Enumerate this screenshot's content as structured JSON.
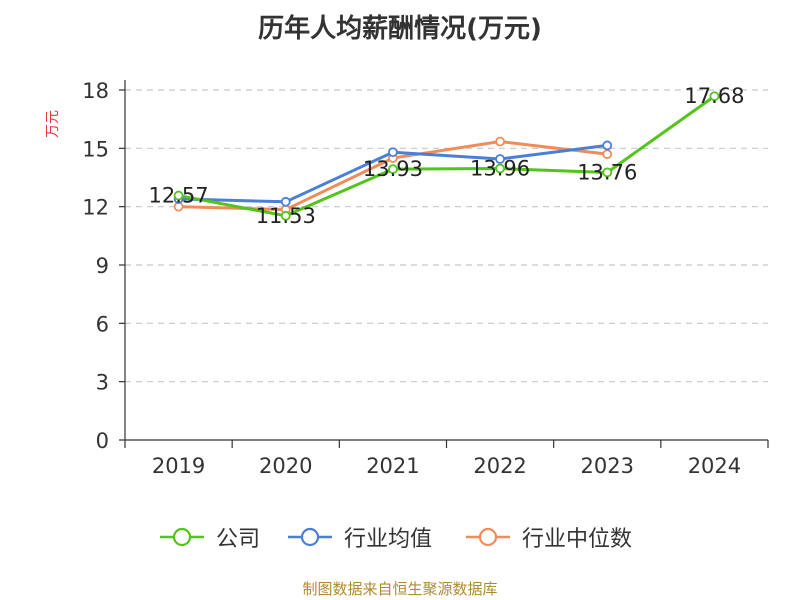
{
  "chart_data": {
    "type": "line",
    "title": "历年人均薪酬情况(万元)",
    "ylabel": "万元",
    "xlabel": "",
    "categories": [
      "2019",
      "2020",
      "2021",
      "2022",
      "2023",
      "2024"
    ],
    "ylim": [
      0,
      18
    ],
    "yticks": [
      0,
      3,
      6,
      9,
      12,
      15,
      18
    ],
    "grid": "horizontal dashed",
    "legend_position": "bottom",
    "series": [
      {
        "name": "公司",
        "color": "#52c41a",
        "values": [
          12.57,
          11.53,
          13.93,
          13.96,
          13.76,
          17.68
        ],
        "labels": [
          "12.57",
          "11.53",
          "13.93",
          "13.96",
          "13.76",
          "17.68"
        ]
      },
      {
        "name": "行业均值",
        "color": "#4a7fd8",
        "values": [
          12.4,
          12.25,
          14.8,
          14.45,
          15.15,
          null
        ]
      },
      {
        "name": "行业中位数",
        "color": "#f08c5a",
        "values": [
          12.0,
          11.85,
          14.5,
          15.35,
          14.7,
          null
        ]
      }
    ]
  },
  "footer": "制图数据来自恒生聚源数据库"
}
